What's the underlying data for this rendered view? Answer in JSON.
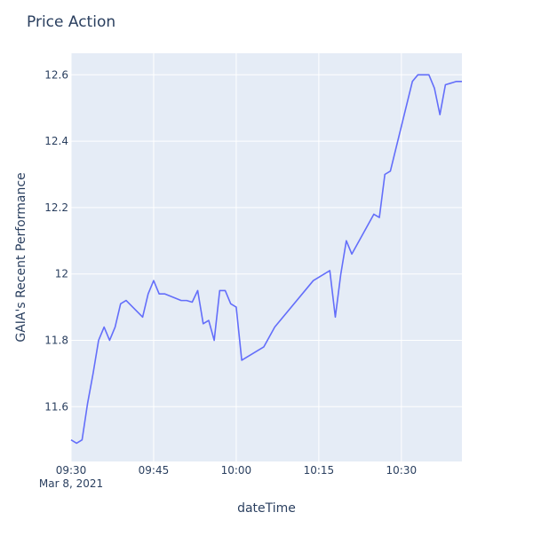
{
  "chart_data": {
    "type": "line",
    "title": "Price Action",
    "xlabel": "dateTime",
    "ylabel": "GAIA's Recent Performance",
    "x_start": "2021-03-08 09:30",
    "x_end": "2021-03-08 10:41",
    "x_ticks": [
      {
        "x": "09:30",
        "label": "09:30",
        "sublabel": "Mar 8, 2021"
      },
      {
        "x": "09:45",
        "label": "09:45",
        "sublabel": ""
      },
      {
        "x": "10:00",
        "label": "10:00",
        "sublabel": ""
      },
      {
        "x": "10:15",
        "label": "10:15",
        "sublabel": ""
      },
      {
        "x": "10:30",
        "label": "10:30",
        "sublabel": ""
      }
    ],
    "ylim": [
      11.435,
      12.665
    ],
    "y_ticks": [
      {
        "value": 11.6,
        "label": "11.6"
      },
      {
        "value": 11.8,
        "label": "11.8"
      },
      {
        "value": 12.0,
        "label": "12"
      },
      {
        "value": 12.2,
        "label": "12.2"
      },
      {
        "value": 12.4,
        "label": "12.4"
      },
      {
        "value": 12.6,
        "label": "12.6"
      }
    ],
    "grid": true,
    "line_color": "#636efa",
    "plot_bg": "#e5ecf6",
    "series": [
      {
        "x": [
          "09:30",
          "09:31",
          "09:32",
          "09:33",
          "09:34",
          "09:35",
          "09:36",
          "09:37",
          "09:38",
          "09:39",
          "09:40",
          "09:43",
          "09:44",
          "09:45",
          "09:46",
          "09:47",
          "09:50",
          "09:51",
          "09:52",
          "09:53",
          "09:54",
          "09:55",
          "09:56",
          "09:57",
          "09:58",
          "09:59",
          "10:00",
          "10:01",
          "10:05",
          "10:07",
          "10:14",
          "10:17",
          "10:18",
          "10:19",
          "10:20",
          "10:21",
          "10:25",
          "10:26",
          "10:27",
          "10:28",
          "10:32",
          "10:33",
          "10:35",
          "10:36",
          "10:37",
          "10:38",
          "10:40",
          "10:41"
        ],
        "y": [
          11.5,
          11.49,
          11.5,
          11.61,
          11.7,
          11.8,
          11.84,
          11.8,
          11.84,
          11.91,
          11.92,
          11.87,
          11.94,
          11.98,
          11.94,
          11.94,
          11.92,
          11.92,
          11.915,
          11.95,
          11.85,
          11.86,
          11.8,
          11.95,
          11.95,
          11.91,
          11.9,
          11.74,
          11.78,
          11.84,
          11.98,
          12.01,
          11.87,
          12.0,
          12.1,
          12.06,
          12.18,
          12.17,
          12.3,
          12.31,
          12.58,
          12.6,
          12.6,
          12.56,
          12.48,
          12.57,
          12.58,
          12.58
        ]
      }
    ]
  }
}
